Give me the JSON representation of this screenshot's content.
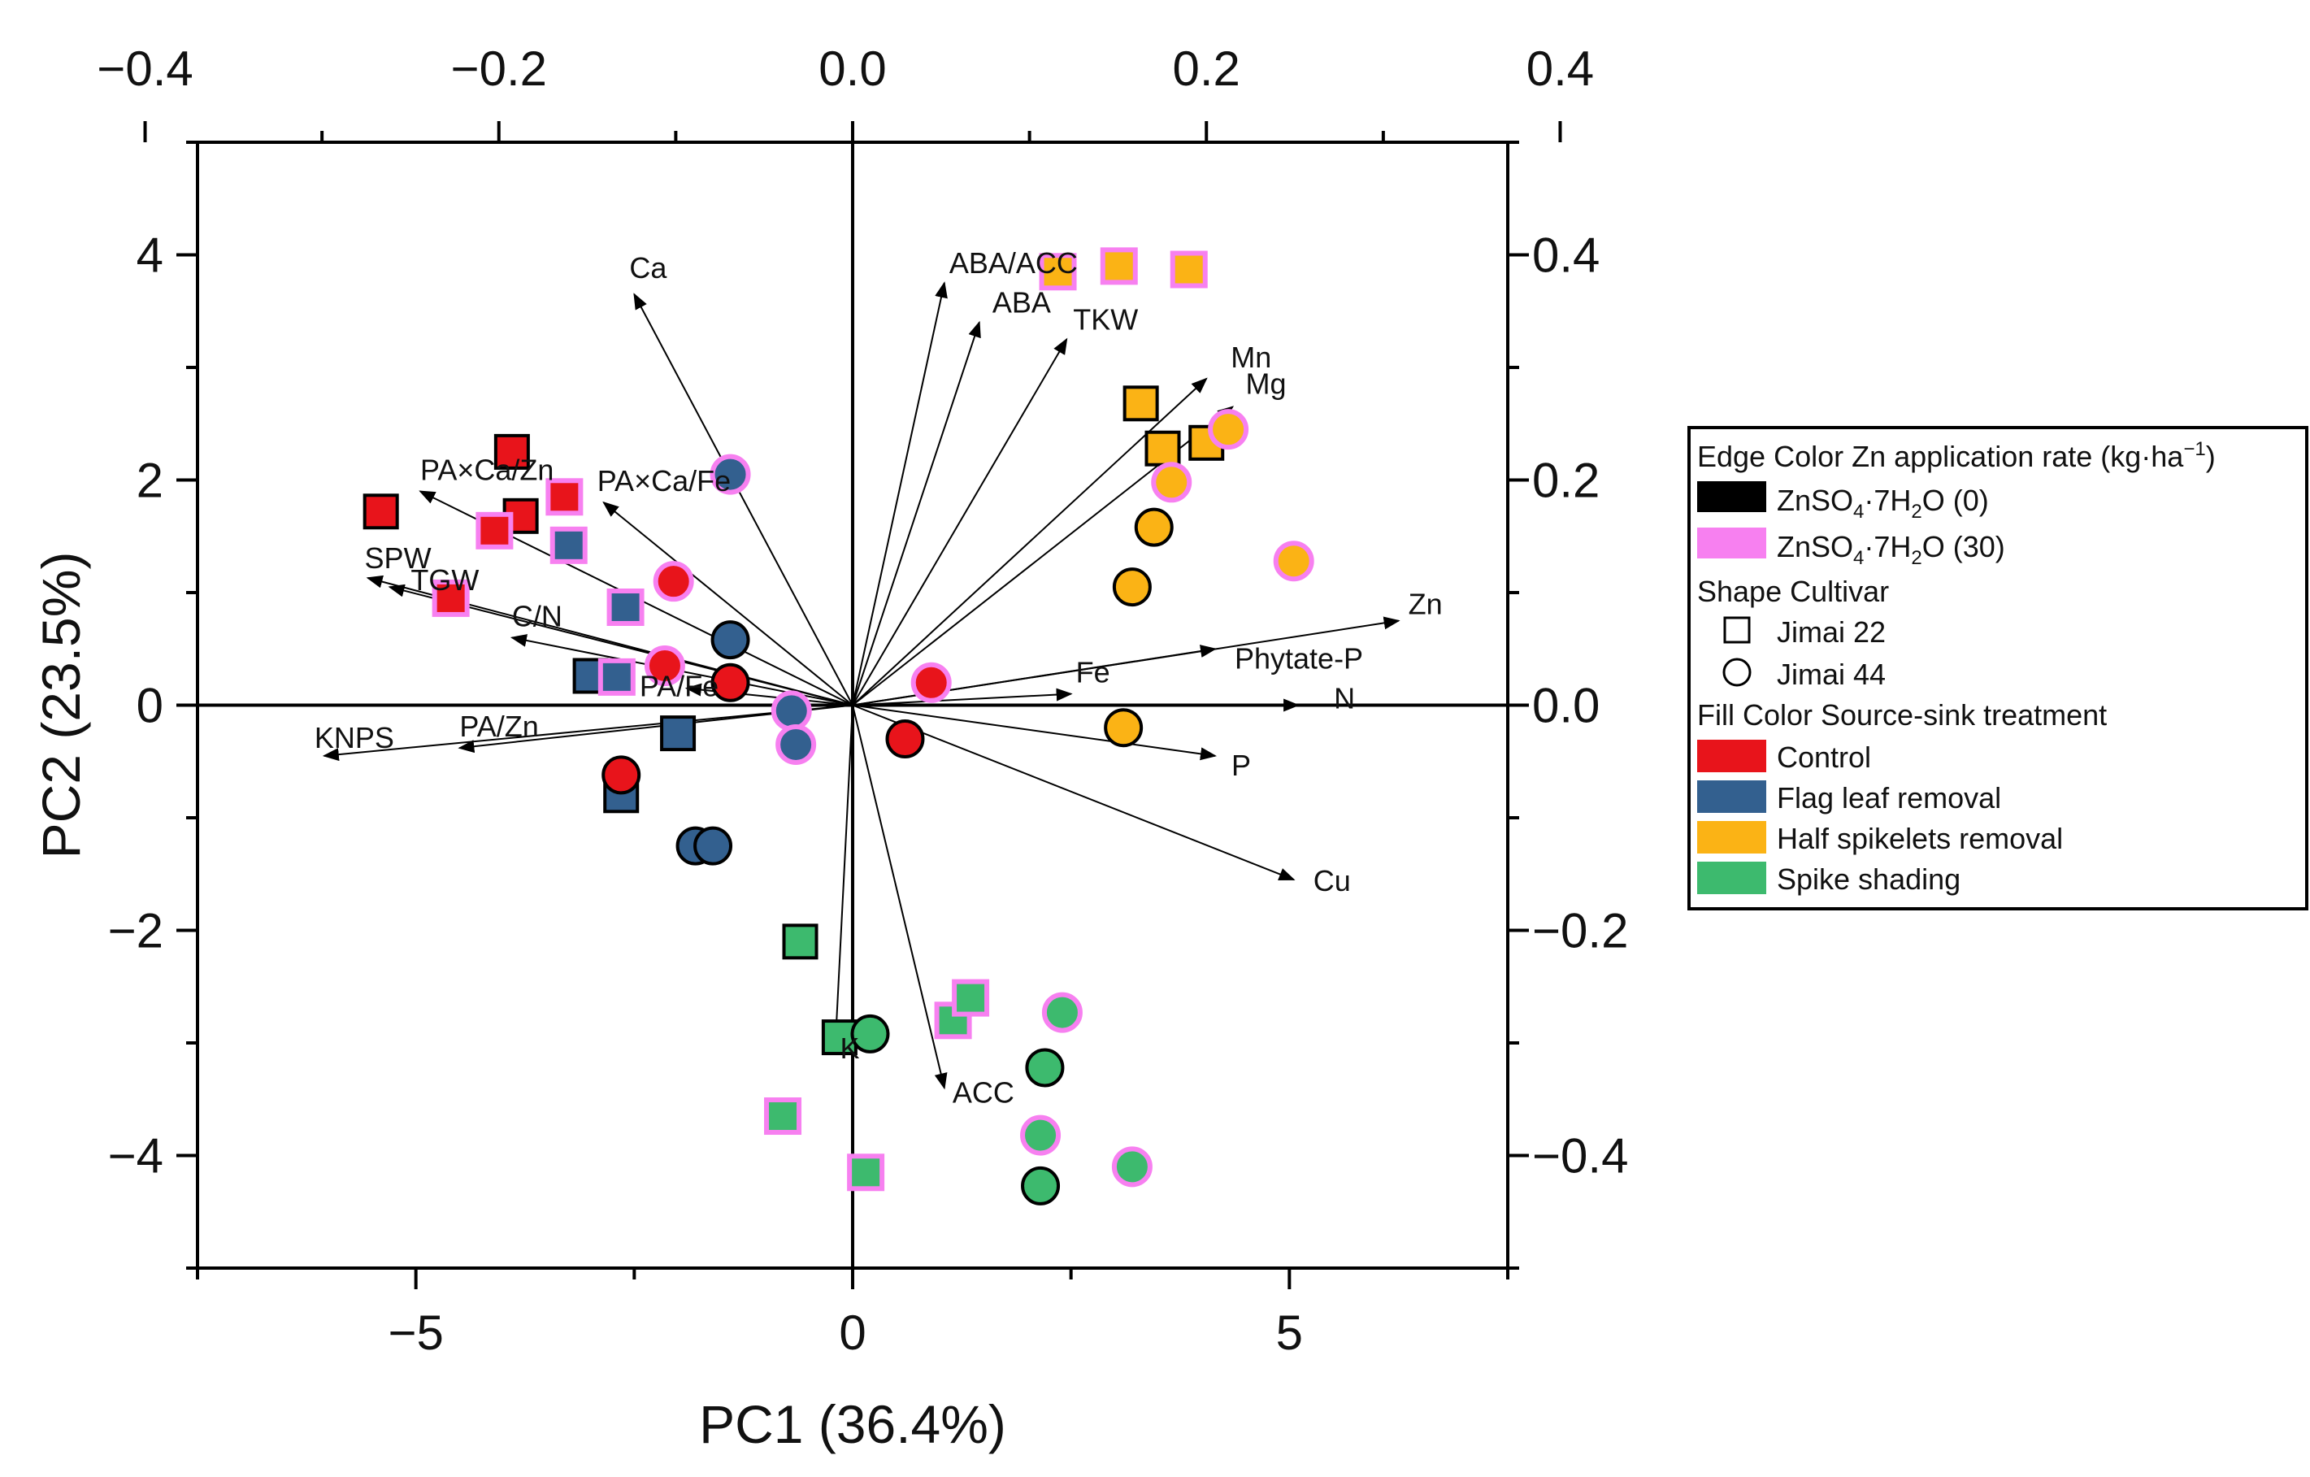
{
  "chart_data": {
    "type": "scatter",
    "subtype": "pca-biplot",
    "xlabel": "PC1 (36.4%)",
    "ylabel": "PC2 (23.5%)",
    "xlim": [
      -7.5,
      7.5
    ],
    "ylim": [
      -5,
      5
    ],
    "x_ticks": [
      -5,
      0,
      5
    ],
    "y_ticks": [
      -4,
      -2,
      0,
      2,
      4
    ],
    "top_ticks": [
      "-0.4",
      "-0.2",
      "0.0",
      "0.2",
      "0.4"
    ],
    "right_ticks": [
      "-0.4",
      "-0.2",
      "0.0",
      "0.2",
      "0.4"
    ],
    "grid": false,
    "legend_position": "right",
    "colors": {
      "control": "#e8141b",
      "flag_leaf_removal": "#33608f",
      "half_spikelets_removal": "#fbb315",
      "spike_shading": "#3dba6e",
      "edge_zn0": "#000000",
      "edge_zn30": "#f780f0"
    },
    "loadings": [
      {
        "label": "Ca",
        "x": -2.5,
        "y": 3.65
      },
      {
        "label": "ABA/ACC",
        "x": 1.05,
        "y": 3.75
      },
      {
        "label": "ABA",
        "x": 1.45,
        "y": 3.4
      },
      {
        "label": "TKW",
        "x": 2.45,
        "y": 3.25
      },
      {
        "label": "Mn",
        "x": 4.05,
        "y": 2.9
      },
      {
        "label": "Mg",
        "x": 4.35,
        "y": 2.65
      },
      {
        "label": "PA×Ca/Zn",
        "x": -4.95,
        "y": 1.9
      },
      {
        "label": "PA×Ca/Fe",
        "x": -2.85,
        "y": 1.8
      },
      {
        "label": "SPW",
        "x": -5.55,
        "y": 1.13
      },
      {
        "label": "TGW",
        "x": -5.3,
        "y": 1.05
      },
      {
        "label": "C/N",
        "x": -3.9,
        "y": 0.6
      },
      {
        "label": "PA/Fe",
        "x": -1.9,
        "y": 0.15
      },
      {
        "label": "KNPS",
        "x": -6.05,
        "y": -0.45
      },
      {
        "label": "PA/Zn",
        "x": -4.5,
        "y": -0.38
      },
      {
        "label": "Fe",
        "x": 2.5,
        "y": 0.1
      },
      {
        "label": "Phytate-P",
        "x": 4.15,
        "y": 0.5
      },
      {
        "label": "Zn",
        "x": 6.25,
        "y": 0.75
      },
      {
        "label": "N",
        "x": 5.1,
        "y": 0.0
      },
      {
        "label": "P",
        "x": 4.15,
        "y": -0.45
      },
      {
        "label": "Cu",
        "x": 5.05,
        "y": -1.55
      },
      {
        "label": "K",
        "x": -0.2,
        "y": -3.05
      },
      {
        "label": "ACC",
        "x": 1.05,
        "y": -3.4
      }
    ],
    "loading_label_text": {
      "Ca": "Ca",
      "ABA/ACC": "ABA/ACC",
      "ABA": "ABA",
      "TKW": "TKW",
      "Mn": "Mn",
      "Mg": "Mg",
      "PA×Ca/Zn": "PA×Ca/Zn",
      "PA×Ca/Fe": "PA×Ca/Fe",
      "SPW": "SPW",
      "TGW": "TGW",
      "C/N": "C/N",
      "PA/Fe": "PA/Fe",
      "KNPS": "KNPS",
      "PA/Zn": "PA/Zn",
      "Fe": "Fe",
      "Phytate-P": "Phytate-P",
      "Zn": "Zn",
      "N": "N",
      "P": "P",
      "Cu": "Cu",
      "K": "K",
      "ACC": "ACC"
    },
    "points": [
      {
        "x": -3.9,
        "y": 2.25,
        "shape": "square",
        "fill": "control",
        "edge": "zn0"
      },
      {
        "x": -5.4,
        "y": 1.72,
        "shape": "square",
        "fill": "control",
        "edge": "zn0"
      },
      {
        "x": -3.8,
        "y": 1.68,
        "shape": "square",
        "fill": "control",
        "edge": "zn0"
      },
      {
        "x": -3.3,
        "y": 1.85,
        "shape": "square",
        "fill": "control",
        "edge": "zn30"
      },
      {
        "x": -4.1,
        "y": 1.55,
        "shape": "square",
        "fill": "control",
        "edge": "zn30"
      },
      {
        "x": -4.6,
        "y": 0.95,
        "shape": "square",
        "fill": "control",
        "edge": "zn30"
      },
      {
        "x": -3.25,
        "y": 1.42,
        "shape": "square",
        "fill": "flag_leaf_removal",
        "edge": "zn30"
      },
      {
        "x": -2.6,
        "y": 0.87,
        "shape": "square",
        "fill": "flag_leaf_removal",
        "edge": "zn30"
      },
      {
        "x": -3.0,
        "y": 0.26,
        "shape": "square",
        "fill": "flag_leaf_removal",
        "edge": "zn0"
      },
      {
        "x": -2.7,
        "y": 0.25,
        "shape": "square",
        "fill": "flag_leaf_removal",
        "edge": "zn30"
      },
      {
        "x": -2.0,
        "y": -0.25,
        "shape": "square",
        "fill": "flag_leaf_removal",
        "edge": "zn0"
      },
      {
        "x": -2.65,
        "y": -0.8,
        "shape": "square",
        "fill": "flag_leaf_removal",
        "edge": "zn0"
      },
      {
        "x": 2.35,
        "y": 3.85,
        "shape": "square",
        "fill": "half_spikelets_removal",
        "edge": "zn30"
      },
      {
        "x": 3.05,
        "y": 3.9,
        "shape": "square",
        "fill": "half_spikelets_removal",
        "edge": "zn30"
      },
      {
        "x": 3.85,
        "y": 3.87,
        "shape": "square",
        "fill": "half_spikelets_removal",
        "edge": "zn30"
      },
      {
        "x": 3.3,
        "y": 2.68,
        "shape": "square",
        "fill": "half_spikelets_removal",
        "edge": "zn0"
      },
      {
        "x": 3.55,
        "y": 2.28,
        "shape": "square",
        "fill": "half_spikelets_removal",
        "edge": "zn0"
      },
      {
        "x": 4.05,
        "y": 2.33,
        "shape": "square",
        "fill": "half_spikelets_removal",
        "edge": "zn0"
      },
      {
        "x": -0.6,
        "y": -2.1,
        "shape": "square",
        "fill": "spike_shading",
        "edge": "zn0"
      },
      {
        "x": -0.15,
        "y": -2.95,
        "shape": "square",
        "fill": "spike_shading",
        "edge": "zn0"
      },
      {
        "x": 1.15,
        "y": -2.8,
        "shape": "square",
        "fill": "spike_shading",
        "edge": "zn30"
      },
      {
        "x": 1.35,
        "y": -2.6,
        "shape": "square",
        "fill": "spike_shading",
        "edge": "zn30"
      },
      {
        "x": -0.8,
        "y": -3.65,
        "shape": "square",
        "fill": "spike_shading",
        "edge": "zn30"
      },
      {
        "x": 0.15,
        "y": -4.15,
        "shape": "square",
        "fill": "spike_shading",
        "edge": "zn30"
      },
      {
        "x": -2.05,
        "y": 1.1,
        "shape": "circle",
        "fill": "control",
        "edge": "zn30"
      },
      {
        "x": -2.15,
        "y": 0.35,
        "shape": "circle",
        "fill": "control",
        "edge": "zn30"
      },
      {
        "x": -1.4,
        "y": 0.2,
        "shape": "circle",
        "fill": "control",
        "edge": "zn0"
      },
      {
        "x": -2.65,
        "y": -0.62,
        "shape": "circle",
        "fill": "control",
        "edge": "zn0"
      },
      {
        "x": 0.9,
        "y": 0.2,
        "shape": "circle",
        "fill": "control",
        "edge": "zn30"
      },
      {
        "x": 0.6,
        "y": -0.3,
        "shape": "circle",
        "fill": "control",
        "edge": "zn0"
      },
      {
        "x": -1.4,
        "y": 2.05,
        "shape": "circle",
        "fill": "flag_leaf_removal",
        "edge": "zn30"
      },
      {
        "x": -1.4,
        "y": 0.58,
        "shape": "circle",
        "fill": "flag_leaf_removal",
        "edge": "zn0"
      },
      {
        "x": -0.7,
        "y": -0.05,
        "shape": "circle",
        "fill": "flag_leaf_removal",
        "edge": "zn30"
      },
      {
        "x": -0.65,
        "y": -0.35,
        "shape": "circle",
        "fill": "flag_leaf_removal",
        "edge": "zn30"
      },
      {
        "x": -1.8,
        "y": -1.25,
        "shape": "circle",
        "fill": "flag_leaf_removal",
        "edge": "zn0"
      },
      {
        "x": -1.6,
        "y": -1.25,
        "shape": "circle",
        "fill": "flag_leaf_removal",
        "edge": "zn0"
      },
      {
        "x": 4.3,
        "y": 2.45,
        "shape": "circle",
        "fill": "half_spikelets_removal",
        "edge": "zn30"
      },
      {
        "x": 3.65,
        "y": 1.98,
        "shape": "circle",
        "fill": "half_spikelets_removal",
        "edge": "zn30"
      },
      {
        "x": 3.45,
        "y": 1.58,
        "shape": "circle",
        "fill": "half_spikelets_removal",
        "edge": "zn0"
      },
      {
        "x": 3.2,
        "y": 1.05,
        "shape": "circle",
        "fill": "half_spikelets_removal",
        "edge": "zn0"
      },
      {
        "x": 5.05,
        "y": 1.28,
        "shape": "circle",
        "fill": "half_spikelets_removal",
        "edge": "zn30"
      },
      {
        "x": 3.1,
        "y": -0.2,
        "shape": "circle",
        "fill": "half_spikelets_removal",
        "edge": "zn0"
      },
      {
        "x": 0.2,
        "y": -2.92,
        "shape": "circle",
        "fill": "spike_shading",
        "edge": "zn0"
      },
      {
        "x": 2.4,
        "y": -2.73,
        "shape": "circle",
        "fill": "spike_shading",
        "edge": "zn30"
      },
      {
        "x": 2.2,
        "y": -3.22,
        "shape": "circle",
        "fill": "spike_shading",
        "edge": "zn0"
      },
      {
        "x": 2.15,
        "y": -3.82,
        "shape": "circle",
        "fill": "spike_shading",
        "edge": "zn30"
      },
      {
        "x": 2.15,
        "y": -4.27,
        "shape": "circle",
        "fill": "spike_shading",
        "edge": "zn0"
      },
      {
        "x": 3.2,
        "y": -4.1,
        "shape": "circle",
        "fill": "spike_shading",
        "edge": "zn30"
      }
    ]
  },
  "legend": {
    "edge_heading": "Edge Color  Zn application rate (kg·ha",
    "edge_heading_sup": "−1",
    "edge_heading_end": ")",
    "edge_items": [
      {
        "key": "zn0",
        "pre": "ZnSO",
        "sub": "4",
        "mid": "·7H",
        "sub2": "2",
        "post": "O (0)"
      },
      {
        "key": "zn30",
        "pre": "ZnSO",
        "sub": "4",
        "mid": "·7H",
        "sub2": "2",
        "post": "O (30)"
      }
    ],
    "shape_heading": "Shape  Cultivar",
    "shape_items": [
      {
        "shape": "square",
        "label": "Jimai 22"
      },
      {
        "shape": "circle",
        "label": "Jimai 44"
      }
    ],
    "fill_heading": "Fill Color  Source-sink treatment",
    "fill_items": [
      {
        "key": "control",
        "label": "Control"
      },
      {
        "key": "flag_leaf_removal",
        "label": "Flag leaf removal"
      },
      {
        "key": "half_spikelets_removal",
        "label": "Half spikelets removal"
      },
      {
        "key": "spike_shading",
        "label": "Spike shading"
      }
    ]
  }
}
